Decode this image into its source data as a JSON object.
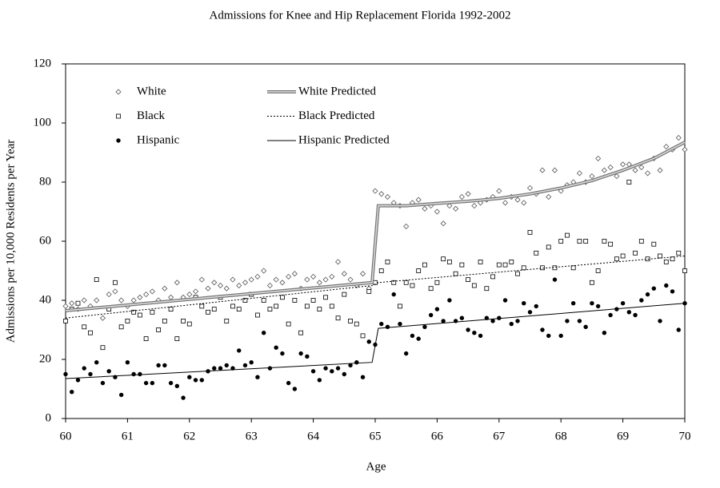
{
  "chart_data": {
    "type": "scatter",
    "title": "Admissions for Knee and Hip Replacement Florida 1992-2002",
    "x_label": "Age",
    "y_label": "Admissions per 10,000 Residents per Year",
    "xlim": [
      60,
      70
    ],
    "xticks": [
      60,
      61,
      62,
      63,
      64,
      65,
      66,
      67,
      68,
      69,
      70
    ],
    "ylim": [
      0,
      120
    ],
    "yticks": [
      0,
      20,
      40,
      60,
      80,
      100,
      120
    ],
    "x": [
      60.0,
      60.1,
      60.2,
      60.3,
      60.4,
      60.5,
      60.6,
      60.7,
      60.8,
      60.9,
      61.0,
      61.1,
      61.2,
      61.3,
      61.4,
      61.5,
      61.6,
      61.7,
      61.8,
      61.9,
      62.0,
      62.1,
      62.2,
      62.3,
      62.4,
      62.5,
      62.6,
      62.7,
      62.8,
      62.9,
      63.0,
      63.1,
      63.2,
      63.3,
      63.4,
      63.5,
      63.6,
      63.7,
      63.8,
      63.9,
      64.0,
      64.1,
      64.2,
      64.3,
      64.4,
      64.5,
      64.6,
      64.7,
      64.8,
      64.9,
      65.0,
      65.1,
      65.2,
      65.3,
      65.4,
      65.5,
      65.6,
      65.7,
      65.8,
      65.9,
      66.0,
      66.1,
      66.2,
      66.3,
      66.4,
      66.5,
      66.6,
      66.7,
      66.8,
      66.9,
      67.0,
      67.1,
      67.2,
      67.3,
      67.4,
      67.5,
      67.6,
      67.7,
      67.8,
      67.9,
      68.0,
      68.1,
      68.2,
      68.3,
      68.4,
      68.5,
      68.6,
      68.7,
      68.8,
      68.9,
      69.0,
      69.1,
      69.2,
      69.3,
      69.4,
      69.5,
      69.6,
      69.7,
      69.8,
      69.9,
      70.0
    ],
    "series": [
      {
        "name": "White",
        "kind": "points",
        "marker": "diamond",
        "color": "#555555",
        "values": [
          38,
          39,
          37,
          40,
          38,
          40,
          34,
          42,
          43,
          40,
          38,
          40,
          41,
          42,
          43,
          40,
          44,
          41,
          46,
          41,
          42,
          43,
          47,
          44,
          46,
          45,
          44,
          47,
          45,
          46,
          47,
          48,
          50,
          45,
          47,
          46,
          48,
          49,
          44,
          47,
          48,
          46,
          47,
          48,
          53,
          49,
          47,
          45,
          49,
          44,
          77,
          76,
          75,
          73,
          72,
          65,
          73,
          74,
          71,
          72,
          70,
          66,
          72,
          71,
          75,
          76,
          72,
          73,
          74,
          75,
          77,
          73,
          75,
          74,
          73,
          78,
          76,
          84,
          75,
          84,
          77,
          79,
          80,
          83,
          80,
          82,
          88,
          84,
          85,
          82,
          86,
          86,
          84,
          85,
          83,
          88,
          84,
          92,
          91,
          95,
          91
        ]
      },
      {
        "name": "Black",
        "kind": "points",
        "marker": "square",
        "color": "#000000",
        "values": [
          33,
          37,
          39,
          31,
          29,
          47,
          24,
          37,
          46,
          31,
          33,
          36,
          35,
          27,
          36,
          30,
          33,
          37,
          27,
          33,
          32,
          41,
          38,
          36,
          37,
          41,
          33,
          38,
          37,
          40,
          42,
          35,
          40,
          37,
          38,
          41,
          32,
          40,
          29,
          38,
          40,
          37,
          41,
          38,
          34,
          42,
          33,
          32,
          28,
          43,
          46,
          50,
          53,
          46,
          38,
          46,
          45,
          50,
          52,
          44,
          46,
          54,
          53,
          49,
          52,
          47,
          45,
          53,
          44,
          48,
          52,
          52,
          53,
          49,
          51,
          63,
          56,
          51,
          58,
          51,
          60,
          62,
          51,
          60,
          60,
          46,
          50,
          60,
          59,
          54,
          55,
          80,
          56,
          60,
          54,
          59,
          55,
          53,
          54,
          56,
          50
        ]
      },
      {
        "name": "Hispanic",
        "kind": "points",
        "marker": "circle",
        "color": "#000000",
        "values": [
          15,
          9,
          13,
          17,
          15,
          19,
          12,
          16,
          14,
          8,
          19,
          15,
          15,
          12,
          12,
          18,
          18,
          12,
          11,
          7,
          14,
          13,
          13,
          16,
          17,
          17,
          18,
          17,
          23,
          18,
          19,
          14,
          29,
          17,
          24,
          22,
          12,
          10,
          22,
          21,
          16,
          13,
          17,
          16,
          17,
          15,
          18,
          19,
          14,
          26,
          25,
          32,
          31,
          42,
          32,
          22,
          28,
          27,
          31,
          35,
          37,
          33,
          40,
          33,
          34,
          30,
          29,
          28,
          34,
          33,
          34,
          40,
          32,
          33,
          39,
          36,
          38,
          30,
          28,
          47,
          28,
          33,
          39,
          33,
          31,
          39,
          38,
          29,
          35,
          37,
          39,
          36,
          35,
          40,
          42,
          44,
          33,
          45,
          43,
          30,
          39
        ]
      },
      {
        "name": "White Predicted",
        "kind": "line",
        "style": "thick",
        "color": "#777777",
        "x": [
          60,
          64.95,
          65.05,
          65.5,
          66,
          66.5,
          67,
          67.5,
          68,
          68.5,
          69,
          69.5,
          70
        ],
        "values": [
          36.5,
          46,
          72,
          72,
          72.8,
          73.5,
          74.5,
          76,
          78,
          80.5,
          84,
          88,
          93.5
        ]
      },
      {
        "name": "Black Predicted",
        "kind": "line",
        "style": "dashed",
        "color": "#000000",
        "x": [
          60,
          64.95,
          65.05,
          70
        ],
        "values": [
          34,
          45,
          46,
          55
        ]
      },
      {
        "name": "Hispanic Predicted",
        "kind": "line",
        "style": "solid",
        "color": "#000000",
        "x": [
          60,
          64.95,
          65.05,
          70
        ],
        "values": [
          13.5,
          19,
          30.5,
          39
        ]
      }
    ]
  }
}
